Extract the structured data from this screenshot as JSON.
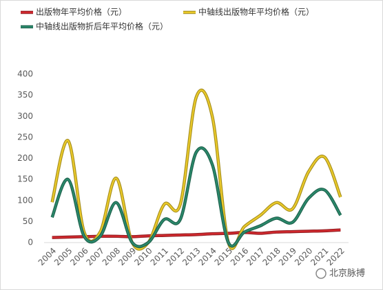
{
  "chart_data": {
    "type": "line",
    "categories": [
      "2004",
      "2005",
      "2006",
      "2007",
      "2008",
      "2009",
      "2010",
      "2011",
      "2012",
      "2013",
      "2014",
      "2015",
      "2016",
      "2017",
      "2018",
      "2019",
      "2020",
      "2021",
      "2022"
    ],
    "series": [
      {
        "name": "出版物年平均价格（元）",
        "color": "#d42a2f",
        "values": [
          12,
          13,
          14,
          15,
          15,
          14,
          16,
          17,
          18,
          19,
          21,
          22,
          24,
          22,
          25,
          26,
          27,
          28,
          30
        ]
      },
      {
        "name": "中轴线出版物年平均价格（元）",
        "color": "#eccb2a",
        "values": [
          96,
          242,
          25,
          25,
          153,
          0,
          0,
          91,
          91,
          346,
          299,
          0,
          38,
          65,
          95,
          80,
          168,
          203,
          108
        ]
      },
      {
        "name": "中轴线出版物折后年平均价格（元）",
        "color": "#2b8a6c",
        "values": [
          60,
          150,
          15,
          15,
          95,
          0,
          0,
          55,
          55,
          215,
          185,
          0,
          25,
          40,
          58,
          48,
          105,
          125,
          65
        ]
      }
    ],
    "ylim": [
      0,
      400
    ],
    "yticks": [
      0,
      50,
      100,
      150,
      200,
      250,
      300,
      350,
      400
    ],
    "grid": false
  },
  "watermark": "北京脉搏"
}
